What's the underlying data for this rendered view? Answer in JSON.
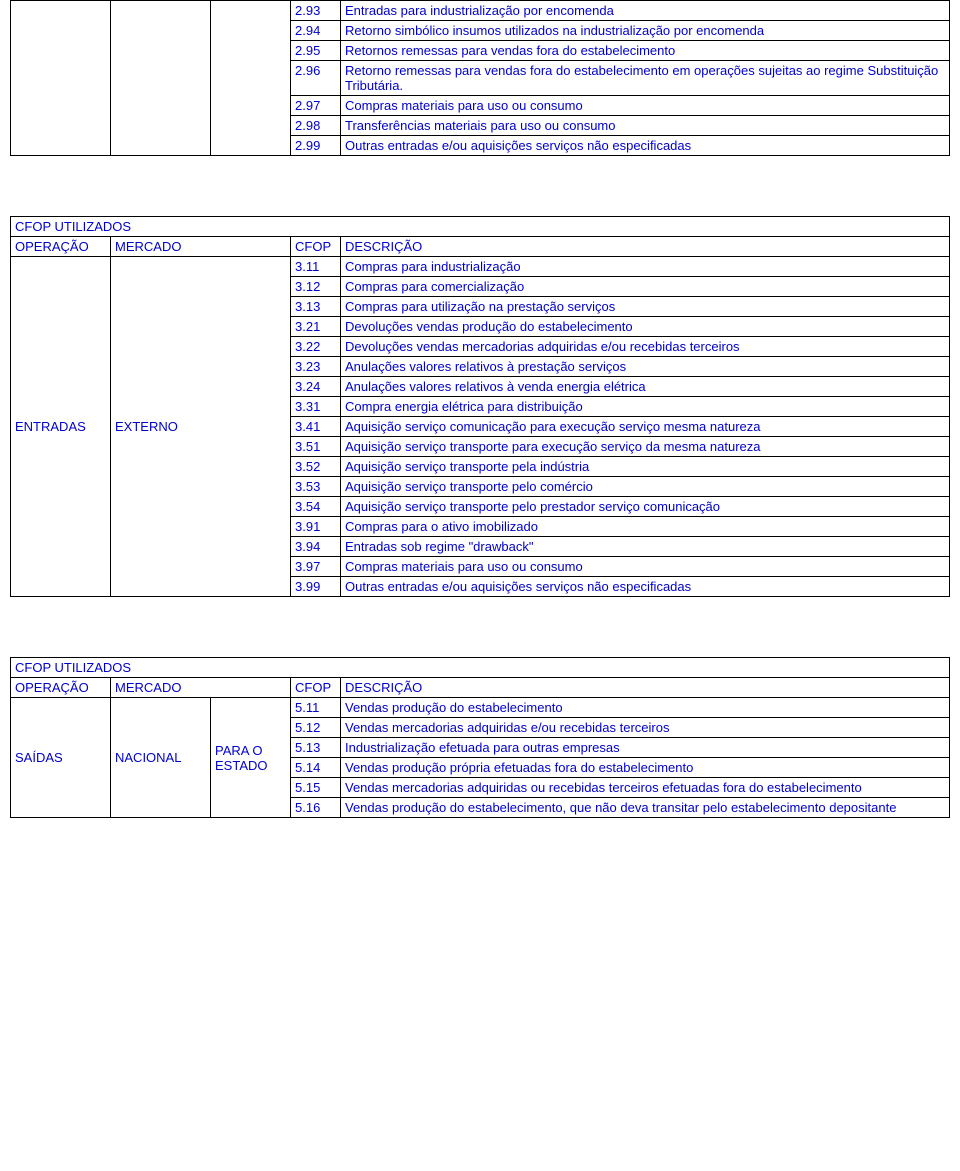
{
  "colors": {
    "text": "#0000cc",
    "border": "#000000",
    "background": "#ffffff"
  },
  "typography": {
    "font_family": "Arial",
    "font_size_pt": 10
  },
  "table1": {
    "rows": [
      {
        "cfop": "2.93",
        "desc": "Entradas para industrialização por encomenda"
      },
      {
        "cfop": "2.94",
        "desc": "Retorno simbólico    insumos utilizados na industrialização por encomenda"
      },
      {
        "cfop": "2.95",
        "desc": "Retornos    remessas para vendas fora do estabelecimento"
      },
      {
        "cfop": "2.96",
        "desc": "Retorno    remessas para vendas fora do estabelecimento em operações sujeitas ao regime    Substituição Tributária."
      },
      {
        "cfop": "2.97",
        "desc": "Compras    materiais para uso ou consumo"
      },
      {
        "cfop": "2.98",
        "desc": "Transferências    materiais para uso ou consumo"
      },
      {
        "cfop": "2.99",
        "desc": "Outras entradas e/ou aquisições    serviços não especificadas"
      }
    ]
  },
  "table2": {
    "title": "CFOP UTILIZADOS",
    "headers": {
      "operacao": "OPERAÇÃO",
      "mercado": "MERCADO",
      "cfop": "CFOP",
      "desc": "DESCRIÇÃO"
    },
    "operacao": "ENTRADAS",
    "mercado": "EXTERNO",
    "rows": [
      {
        "cfop": "3.11",
        "desc": "Compras para industrialização"
      },
      {
        "cfop": "3.12",
        "desc": "Compras para comercialização"
      },
      {
        "cfop": "3.13",
        "desc": "Compras para utilização na prestação    serviços"
      },
      {
        "cfop": "3.21",
        "desc": "Devoluções    vendas    produção do estabelecimento"
      },
      {
        "cfop": "3.22",
        "desc": "Devoluções    vendas    mercadorias adquiridas e/ou recebidas    terceiros"
      },
      {
        "cfop": "3.23",
        "desc": "Anulações    valores relativos à prestação    serviços"
      },
      {
        "cfop": "3.24",
        "desc": "Anulações    valores relativos à venda    energia elétrica"
      },
      {
        "cfop": "3.31",
        "desc": "Compra    energia elétrica para distribuição"
      },
      {
        "cfop": "3.41",
        "desc": "Aquisição    serviço    comunicação para execução    serviço    mesma natureza"
      },
      {
        "cfop": "3.51",
        "desc": "Aquisição    serviço    transporte para execução    serviço da mesma natureza"
      },
      {
        "cfop": "3.52",
        "desc": "Aquisição    serviço    transporte pela indústria"
      },
      {
        "cfop": "3.53",
        "desc": "Aquisição    serviço    transporte pelo comércio"
      },
      {
        "cfop": "3.54",
        "desc": "Aquisição    serviço    transporte pelo prestador    serviço    comunicação"
      },
      {
        "cfop": "3.91",
        "desc": "Compras para o ativo imobilizado"
      },
      {
        "cfop": "3.94",
        "desc": "Entradas sob regime    \"drawback\""
      },
      {
        "cfop": "3.97",
        "desc": "Compras    materiais para uso ou consumo"
      },
      {
        "cfop": "3.99",
        "desc": "Outras entradas e/ou aquisições    serviços não especificadas"
      }
    ]
  },
  "table3": {
    "title": "CFOP UTILIZADOS",
    "headers": {
      "operacao": "OPERAÇÃO",
      "mercado": "MERCADO",
      "cfop": "CFOP",
      "desc": "DESCRIÇÃO"
    },
    "operacao": "SAÍDAS",
    "mercado": "NACIONAL",
    "extra": "PARA O ESTADO",
    "rows": [
      {
        "cfop": "5.11",
        "desc": "Vendas    produção do estabelecimento"
      },
      {
        "cfop": "5.12",
        "desc": "Vendas    mercadorias adquiridas e/ou recebidas    terceiros"
      },
      {
        "cfop": "5.13",
        "desc": "Industrialização efetuada para outras empresas"
      },
      {
        "cfop": "5.14",
        "desc": "Vendas    produção própria efetuadas fora do estabelecimento"
      },
      {
        "cfop": "5.15",
        "desc": "Vendas    mercadorias adquiridas ou recebidas    terceiros efetuadas fora do estabelecimento"
      },
      {
        "cfop": "5.16",
        "desc": "Vendas    produção do estabelecimento, que não deva transitar pelo estabelecimento depositante"
      }
    ]
  }
}
